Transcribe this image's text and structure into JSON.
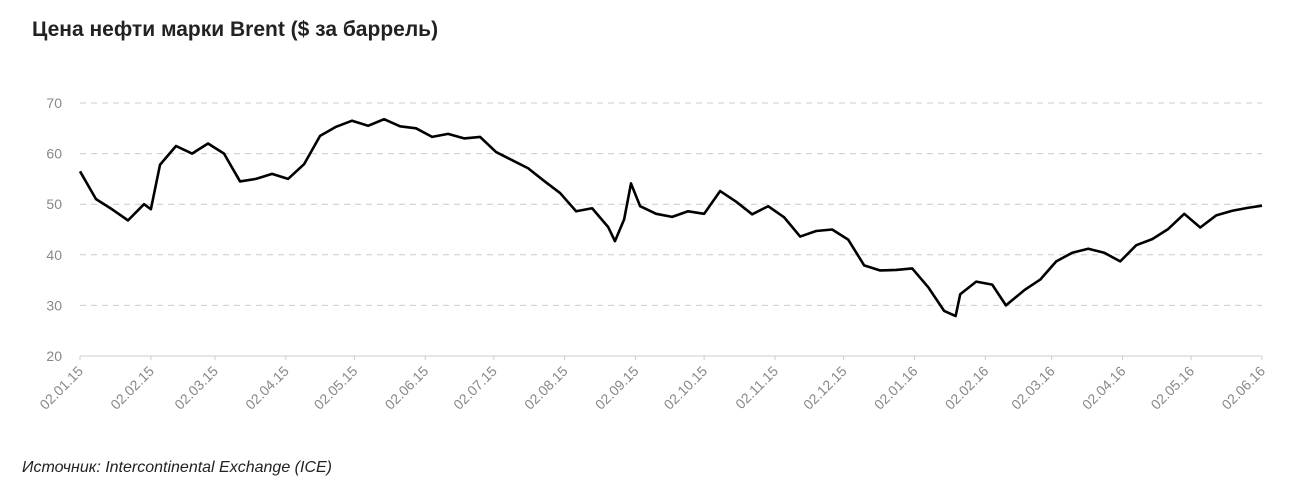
{
  "chart_data": {
    "type": "line",
    "title": "Цена нефти марки Brent ($ за баррель)",
    "source": "Источник: Intercontinental Exchange (ICE)",
    "x": [
      "02.01.15",
      "09.01.15",
      "16.01.15",
      "23.01.15",
      "30.01.15",
      "02.02.15",
      "06.02.15",
      "13.02.15",
      "20.02.15",
      "27.02.15",
      "06.03.15",
      "13.03.15",
      "20.03.15",
      "27.03.15",
      "03.04.15",
      "10.04.15",
      "17.04.15",
      "24.04.15",
      "01.05.15",
      "08.05.15",
      "15.05.15",
      "22.05.15",
      "29.05.15",
      "05.06.15",
      "12.06.15",
      "19.06.15",
      "26.06.15",
      "03.07.15",
      "10.07.15",
      "17.07.15",
      "24.07.15",
      "31.07.15",
      "07.08.15",
      "14.08.15",
      "21.08.15",
      "24.08.15",
      "28.08.15",
      "31.08.15",
      "04.09.15",
      "11.09.15",
      "18.09.15",
      "25.09.15",
      "02.10.15",
      "09.10.15",
      "16.10.15",
      "23.10.15",
      "30.10.15",
      "06.11.15",
      "13.11.15",
      "20.11.15",
      "27.11.15",
      "04.12.15",
      "11.12.15",
      "18.12.15",
      "25.12.15",
      "01.01.16",
      "08.01.16",
      "15.01.16",
      "20.01.16",
      "22.01.16",
      "29.01.16",
      "05.02.16",
      "11.02.16",
      "19.02.16",
      "26.02.16",
      "04.03.16",
      "11.03.16",
      "18.03.16",
      "25.03.16",
      "01.04.16",
      "08.04.16",
      "15.04.16",
      "22.04.16",
      "29.04.16",
      "06.05.16",
      "13.05.16",
      "20.05.16",
      "27.05.16",
      "02.06.16"
    ],
    "series": [
      {
        "color": "#000000",
        "values": [
          56.5,
          51,
          49,
          46.8,
          50,
          49,
          57.8,
          61.5,
          60,
          62,
          60,
          54.5,
          55,
          56,
          55,
          57.9,
          63.5,
          65.3,
          66.5,
          65.5,
          66.8,
          65.4,
          65,
          63.3,
          63.9,
          63,
          63.3,
          60.3,
          58.7,
          57.1,
          54.6,
          52.2,
          48.6,
          49.2,
          45.5,
          42.7,
          47,
          54.1,
          49.6,
          48.1,
          47.5,
          48.6,
          48.1,
          52.6,
          50.5,
          48,
          49.6,
          47.4,
          43.6,
          44.7,
          45,
          43,
          37.9,
          36.9,
          37,
          37.3,
          33.6,
          28.9,
          27.9,
          32.2,
          34.7,
          34.1,
          30,
          33,
          35.1,
          38.7,
          40.4,
          41.2,
          40.4,
          38.7,
          41.9,
          43.1,
          45.1,
          48.1,
          45.4,
          47.8,
          48.7,
          49.3,
          49.7
        ]
      }
    ],
    "xlim": [
      "02.01.15",
      "02.06.16"
    ],
    "xticks": [
      "02.01.15",
      "02.02.15",
      "02.03.15",
      "02.04.15",
      "02.05.15",
      "02.06.15",
      "02.07.15",
      "02.08.15",
      "02.09.15",
      "02.10.15",
      "02.11.15",
      "02.12.15",
      "02.01.16",
      "02.02.16",
      "02.03.16",
      "02.04.16",
      "02.05.16",
      "02.06.16"
    ],
    "ylim": [
      20,
      70
    ],
    "yticks": [
      20,
      30,
      40,
      50,
      60,
      70
    ],
    "grid": true
  }
}
